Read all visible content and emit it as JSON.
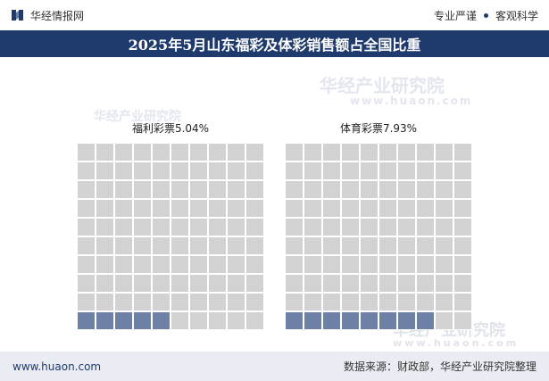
{
  "header": {
    "site_name": "华经情报网",
    "tag_left": "专业严谨",
    "tag_right": "客观科学"
  },
  "title": "2025年5月山东福彩及体彩销售额占全国比重",
  "watermark": {
    "cn": "华经产业研究院",
    "url": "www.huaon.com"
  },
  "footer": {
    "url": "www.huaon.com",
    "source": "数据来源：财政部，华经产业研究院整理"
  },
  "colors": {
    "accent": "#1f3b6e",
    "filled": "#6d80a6",
    "empty": "#d2d2d2"
  },
  "chart_data": {
    "type": "waffle",
    "title": "2025年5月山东福彩及体彩销售额占全国比重",
    "grid": [
      10,
      10
    ],
    "unit": "%",
    "series": [
      {
        "name": "福利彩票",
        "value": 5.04,
        "label": "福利彩票5.04%"
      },
      {
        "name": "体育彩票",
        "value": 7.93,
        "label": "体育彩票7.93%"
      }
    ]
  }
}
